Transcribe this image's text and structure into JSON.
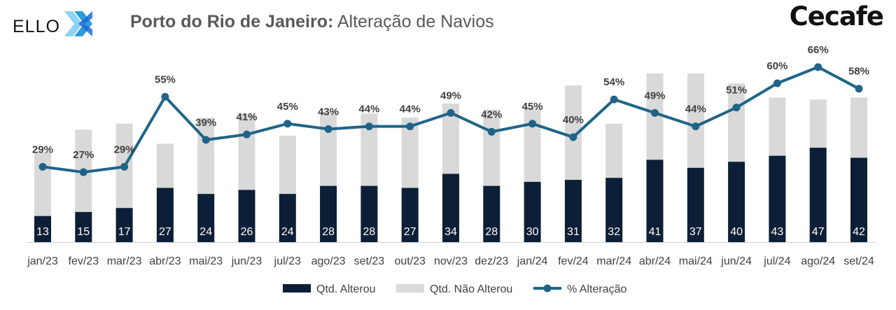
{
  "header": {
    "logo_left": "ELLO",
    "title_bold": "Porto do Rio de Janeiro:",
    "title_rest": "Alteração de Navios",
    "logo_right": "Cecafe"
  },
  "colors": {
    "dark_bar": "#0d1f36",
    "light_bar": "#d9d9d9",
    "line": "#1f6488",
    "label_text": "#404040",
    "logo_blue": "#2d9cdb"
  },
  "chart_data": {
    "type": "bar",
    "stacked": true,
    "categories": [
      "jan/23",
      "fev/23",
      "mar/23",
      "abr/23",
      "mai/23",
      "jun/23",
      "jul/23",
      "ago/23",
      "set/23",
      "out/23",
      "nov/23",
      "dez/23",
      "jan/24",
      "fev/24",
      "mar/24",
      "abr/24",
      "mai/24",
      "jun/24",
      "jul/24",
      "ago/24",
      "set/24"
    ],
    "series": [
      {
        "name": "Qtd. Alterou",
        "kind": "bar",
        "values": [
          13,
          15,
          17,
          27,
          24,
          26,
          24,
          28,
          28,
          27,
          34,
          28,
          30,
          31,
          32,
          41,
          37,
          40,
          43,
          47,
          42
        ]
      },
      {
        "name": "Qtd. Não Alterou",
        "kind": "bar",
        "values": [
          32,
          41,
          42,
          22,
          38,
          38,
          29,
          37,
          36,
          35,
          35,
          38,
          37,
          47,
          27,
          43,
          47,
          39,
          29,
          24,
          30
        ]
      },
      {
        "name": "% Alteração",
        "kind": "line",
        "axis": "secondary",
        "values": [
          29,
          27,
          29,
          55,
          39,
          41,
          45,
          43,
          44,
          44,
          49,
          42,
          45,
          40,
          54,
          49,
          44,
          51,
          60,
          66,
          58
        ],
        "labels": [
          "29%",
          "27%",
          "29%",
          "55%",
          "39%",
          "41%",
          "45%",
          "43%",
          "44%",
          "44%",
          "49%",
          "42%",
          "45%",
          "40%",
          "54%",
          "49%",
          "44%",
          "51%",
          "60%",
          "66%",
          "58%"
        ]
      }
    ],
    "legend": "bottom",
    "grid": false
  }
}
